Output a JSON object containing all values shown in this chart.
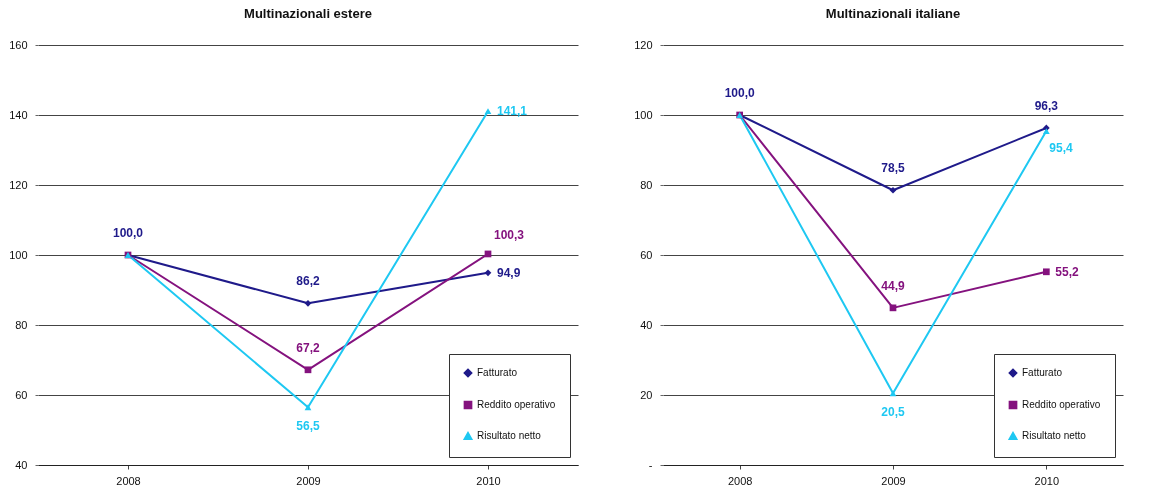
{
  "chart_data": [
    {
      "type": "line",
      "title": "Multinazionali estere",
      "categories": [
        "2008",
        "2009",
        "2010"
      ],
      "series": [
        {
          "name": "Fatturato",
          "color": "#1f1a8a",
          "marker": "diamond",
          "values": [
            100.0,
            86.2,
            94.9
          ],
          "value_labels": [
            "100,0",
            "86,2",
            "94,9"
          ]
        },
        {
          "name": "Reddito operativo",
          "color": "#84127e",
          "marker": "square",
          "values": [
            100.0,
            67.2,
            100.3
          ],
          "value_labels": [
            null,
            "67,2",
            "100,3"
          ]
        },
        {
          "name": "Risultato netto",
          "color": "#1ec8f2",
          "marker": "triangle",
          "values": [
            100.0,
            56.5,
            141.1
          ],
          "value_labels": [
            null,
            "56,5",
            "141,1"
          ]
        }
      ],
      "ylim": [
        40,
        160
      ],
      "yticks": [
        40,
        60,
        80,
        100,
        120,
        140,
        160
      ],
      "grid": "y",
      "legend": "bottom right",
      "line_style": "solid"
    },
    {
      "type": "line",
      "title": "Multinazionali italiane",
      "categories": [
        "2008",
        "2009",
        "2010"
      ],
      "series": [
        {
          "name": "Fatturato",
          "color": "#1f1a8a",
          "marker": "diamond",
          "values": [
            100.0,
            78.5,
            96.3
          ],
          "value_labels": [
            "100,0",
            "78,5",
            "96,3"
          ]
        },
        {
          "name": "Reddito operativo",
          "color": "#84127e",
          "marker": "square",
          "values": [
            100.0,
            44.9,
            55.2
          ],
          "value_labels": [
            null,
            "44,9",
            "55,2"
          ]
        },
        {
          "name": "Risultato netto",
          "color": "#1ec8f2",
          "marker": "triangle",
          "values": [
            100.0,
            20.5,
            95.4
          ],
          "value_labels": [
            null,
            "20,5",
            "95,4"
          ]
        }
      ],
      "ylim": [
        0,
        120
      ],
      "yticks": [
        {
          "value": 0,
          "label": "-"
        },
        20,
        40,
        60,
        80,
        100,
        120
      ],
      "grid": "y",
      "legend": "bottom right",
      "line_style": "solid"
    }
  ]
}
